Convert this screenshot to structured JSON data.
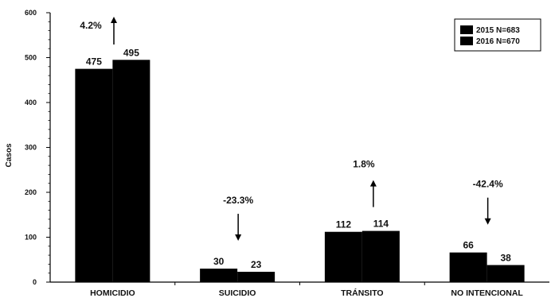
{
  "chart_data": {
    "type": "bar",
    "ylabel": "Casos",
    "xlabel": "",
    "ylim": [
      0,
      600
    ],
    "yticks": [
      0,
      100,
      200,
      300,
      400,
      500,
      600
    ],
    "ytick_labels": [
      "0",
      "100",
      "200",
      "300",
      "400",
      "500",
      "600"
    ],
    "categories": [
      "HOMICIDIO",
      "SUICIDIO",
      "TRÁNSITO",
      "NO INTENCIONAL"
    ],
    "series": [
      {
        "name": "2015 N=683",
        "values": [
          475,
          30,
          112,
          66
        ],
        "labels": [
          "475",
          "30",
          "112",
          "66"
        ]
      },
      {
        "name": "2016 N=670",
        "values": [
          495,
          23,
          114,
          38
        ],
        "labels": [
          "495",
          "23",
          "114",
          "38"
        ]
      }
    ],
    "annotations": [
      {
        "category": "HOMICIDIO",
        "text": "4.2%",
        "direction": "up"
      },
      {
        "category": "SUICIDIO",
        "text": "-23.3%",
        "direction": "down"
      },
      {
        "category": "TRÁNSITO",
        "text": "1.8%",
        "direction": "up"
      },
      {
        "category": "NO INTENCIONAL",
        "text": "-42.4%",
        "direction": "down"
      }
    ],
    "legend_position": "top-right",
    "grid": false,
    "colors": {
      "bar": "#000000",
      "axis": "#000000",
      "background": "#ffffff"
    }
  }
}
